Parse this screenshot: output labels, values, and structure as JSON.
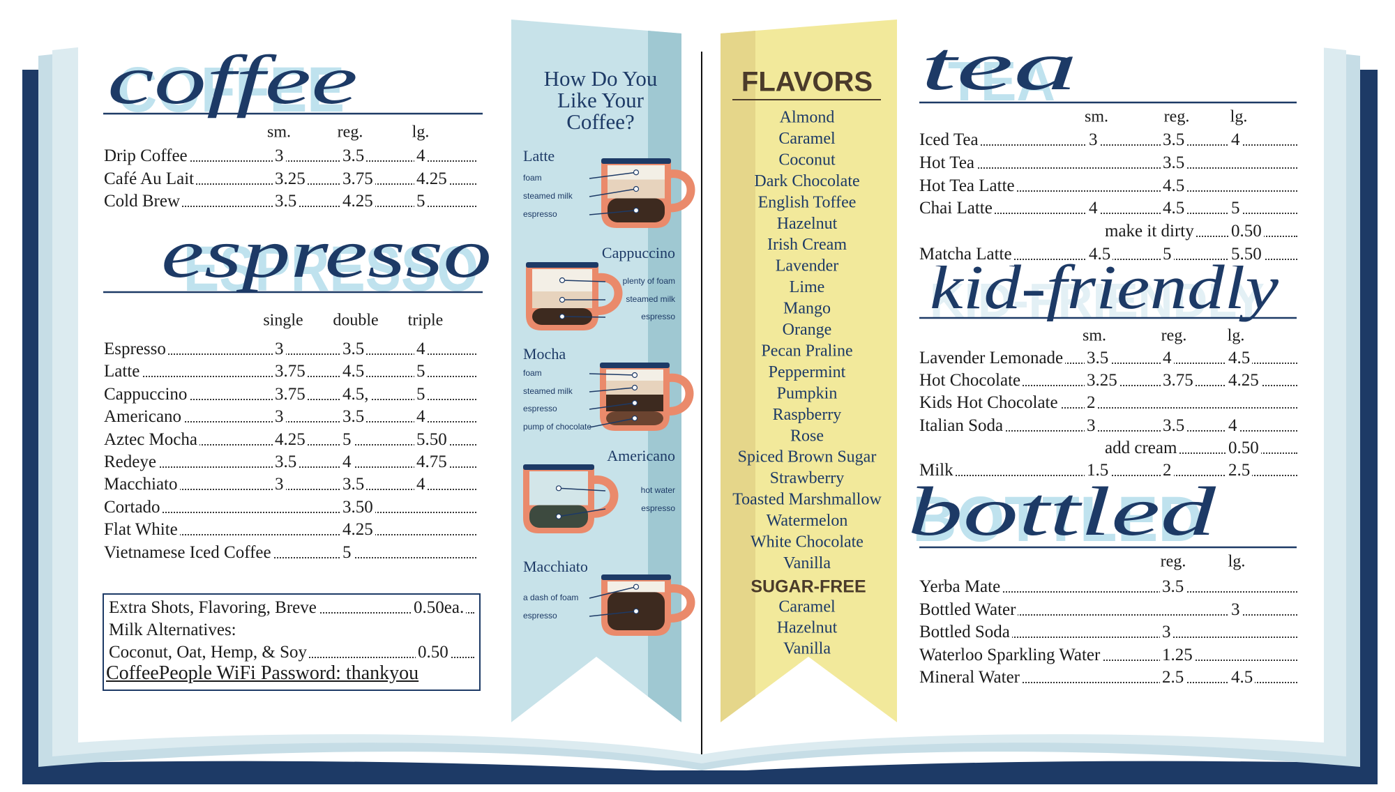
{
  "coffee": {
    "title_block": "COFFEE",
    "title_script": "coffee",
    "columns": [
      "sm.",
      "reg.",
      "lg."
    ],
    "rows": [
      {
        "name": "Drip Coffee",
        "prices": [
          "3",
          "3.5",
          "4"
        ]
      },
      {
        "name": "Café Au Lait",
        "prices": [
          "3.25",
          "3.75",
          "4.25"
        ]
      },
      {
        "name": "Cold Brew",
        "prices": [
          "3.5",
          "4.25",
          "5"
        ]
      }
    ]
  },
  "espresso": {
    "title_block": "ESPRESSO",
    "title_script": "espresso",
    "columns": [
      "single",
      "double",
      "triple"
    ],
    "rows": [
      {
        "name": "Espresso",
        "prices": [
          "3",
          "3.5",
          "4"
        ]
      },
      {
        "name": "Latte",
        "prices": [
          "3.75",
          "4.5",
          "5"
        ]
      },
      {
        "name": "Cappuccino",
        "prices": [
          "3.75",
          "4.5,",
          "5"
        ]
      },
      {
        "name": "Americano",
        "prices": [
          "3",
          "3.5",
          "4"
        ]
      },
      {
        "name": "Aztec Mocha",
        "prices": [
          "4.25",
          "5",
          "5.50"
        ]
      },
      {
        "name": "Redeye",
        "prices": [
          "3.5",
          "4",
          "4.75"
        ]
      },
      {
        "name": "Macchiato",
        "prices": [
          "3",
          "3.5",
          "4"
        ]
      },
      {
        "name": "Cortado",
        "prices": [
          null,
          "3.50",
          null
        ]
      },
      {
        "name": "Flat White",
        "prices": [
          null,
          "4.25",
          null
        ]
      },
      {
        "name": "Vietnamese Iced Coffee",
        "prices": [
          null,
          "5",
          null
        ]
      }
    ]
  },
  "notes": {
    "lines": [
      {
        "text": "Extra Shots, Flavoring, Breve",
        "price": "0.50ea."
      },
      {
        "text": "Milk Alternatives:"
      },
      {
        "text": "Coconut, Oat, Hemp, & Soy",
        "price": "0.50"
      }
    ],
    "wifi": "CoffeePeople WiFi Password: thankyou"
  },
  "guide": {
    "title": [
      "How Do You",
      "Like Your",
      "Coffee?"
    ],
    "drinks": [
      {
        "name": "Latte",
        "parts": [
          "foam",
          "steamed milk",
          "espresso"
        ]
      },
      {
        "name": "Cappuccino",
        "parts": [
          "plenty of foam",
          "steamed milk",
          "espresso"
        ]
      },
      {
        "name": "Mocha",
        "parts": [
          "foam",
          "steamed milk",
          "espresso",
          "pump of chocolate"
        ]
      },
      {
        "name": "Americano",
        "parts": [
          "hot water",
          "espresso"
        ]
      },
      {
        "name": "Macchiato",
        "parts": [
          "a dash of foam",
          "espresso"
        ]
      }
    ]
  },
  "flavors": {
    "title": "FLAVORS",
    "items": [
      "Almond",
      "Caramel",
      "Coconut",
      "Dark Chocolate",
      "English Toffee",
      "Hazelnut",
      "Irish Cream",
      "Lavender",
      "Lime",
      "Mango",
      "Orange",
      "Pecan Praline",
      "Peppermint",
      "Pumpkin",
      "Raspberry",
      "Rose",
      "Spiced Brown Sugar",
      "Strawberry",
      "Toasted Marshmallow",
      "Watermelon",
      "White Chocolate",
      "Vanilla"
    ],
    "sugar_free_title": "SUGAR-FREE",
    "sugar_free": [
      "Caramel",
      "Hazelnut",
      "Vanilla"
    ]
  },
  "tea": {
    "title_block": "TEA",
    "title_script": "tea",
    "columns": [
      "sm.",
      "reg.",
      "lg."
    ],
    "rows": [
      {
        "name": "Iced Tea",
        "prices": [
          "3",
          "3.5",
          "4"
        ]
      },
      {
        "name": "Hot Tea",
        "prices": [
          null,
          "3.5",
          null
        ]
      },
      {
        "name": "Hot Tea Latte",
        "prices": [
          null,
          "4.5",
          null
        ]
      },
      {
        "name": "Chai Latte",
        "prices": [
          "4",
          "4.5",
          "5"
        ]
      },
      {
        "extra": "make it dirty",
        "price": "0.50"
      },
      {
        "name": "Matcha Latte",
        "prices": [
          "4.5",
          "5",
          "5.50"
        ]
      }
    ]
  },
  "kid_friendly": {
    "title_block": "KID-FRIENDLY",
    "title_script": "kid-friendly",
    "columns": [
      "sm.",
      "reg.",
      "lg."
    ],
    "rows": [
      {
        "name": "Lavender Lemonade",
        "prices": [
          "3.5",
          "4",
          "4.5"
        ]
      },
      {
        "name": "Hot Chocolate",
        "prices": [
          "3.25",
          "3.75",
          "4.25"
        ]
      },
      {
        "name": "Kids Hot Chocolate",
        "prices": [
          "2",
          null,
          null
        ]
      },
      {
        "name": "Italian Soda",
        "prices": [
          "3",
          "3.5",
          "4"
        ]
      },
      {
        "extra": "add cream",
        "price": "0.50"
      },
      {
        "name": "Milk",
        "prices": [
          "1.5",
          "2",
          "2.5"
        ]
      }
    ]
  },
  "bottled": {
    "title_block": "BOTTLED",
    "title_script": "bottled",
    "columns": [
      "reg.",
      "lg."
    ],
    "rows": [
      {
        "name": "Yerba Mate",
        "prices": [
          "3.5",
          null
        ]
      },
      {
        "name": "Bottled Water",
        "prices": [
          null,
          "3"
        ]
      },
      {
        "name": "Bottled Soda",
        "prices": [
          "3",
          null
        ]
      },
      {
        "name": "Waterloo Sparkling Water",
        "prices": [
          "1.25",
          null
        ]
      },
      {
        "name": "Mineral Water",
        "prices": [
          "2.5",
          "4.5"
        ]
      }
    ]
  }
}
